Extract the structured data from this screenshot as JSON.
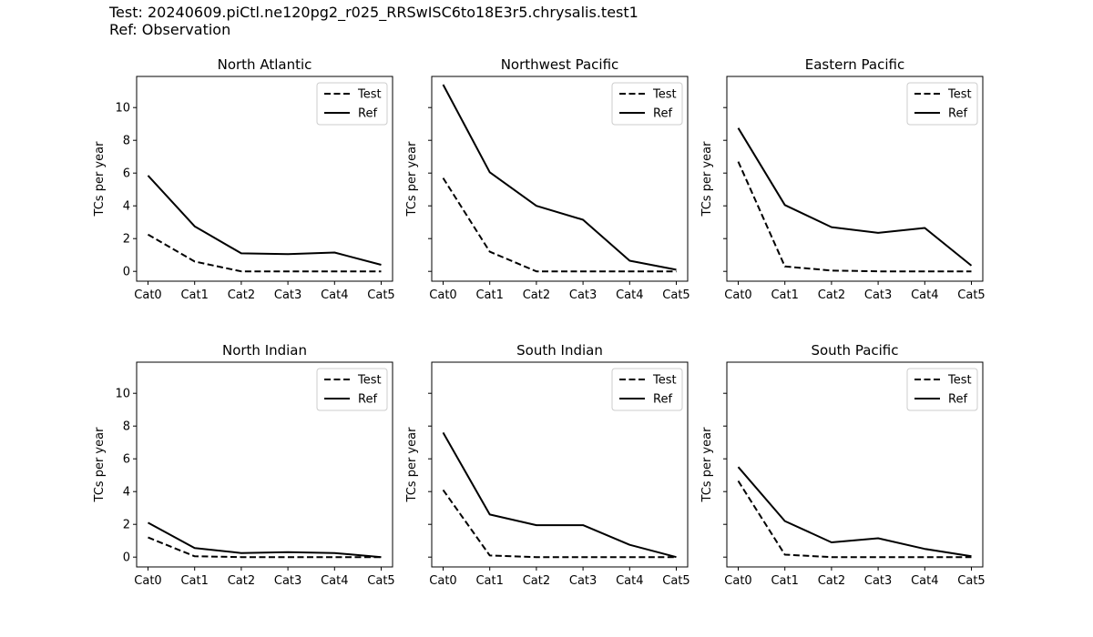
{
  "figure": {
    "title_line1": "Test: 20240609.piCtl.ne120pg2_r025_RRSwISC6to18E3r5.chrysalis.test1",
    "title_line2": "Ref: Observation"
  },
  "chart_data": [
    {
      "type": "line",
      "title": "North Atlantic",
      "ylabel": "TCs per year",
      "categories": [
        "Cat0",
        "Cat1",
        "Cat2",
        "Cat3",
        "Cat4",
        "Cat5"
      ],
      "ylim": [
        -0.6,
        11.9
      ],
      "yticks": [
        0,
        2,
        4,
        6,
        8,
        10
      ],
      "show_ytick_labels": true,
      "legend": "top-right",
      "series": [
        {
          "name": "Test",
          "style": "dashed",
          "color": "#000000",
          "values": [
            2.25,
            0.6,
            0.0,
            0.0,
            0.0,
            0.0
          ]
        },
        {
          "name": "Ref",
          "style": "solid",
          "color": "#000000",
          "values": [
            5.85,
            2.75,
            1.1,
            1.05,
            1.15,
            0.4
          ]
        }
      ]
    },
    {
      "type": "line",
      "title": "Northwest Pacific",
      "ylabel": "TCs per year",
      "categories": [
        "Cat0",
        "Cat1",
        "Cat2",
        "Cat3",
        "Cat4",
        "Cat5"
      ],
      "ylim": [
        -0.6,
        11.9
      ],
      "yticks": [
        0,
        2,
        4,
        6,
        8,
        10
      ],
      "show_ytick_labels": false,
      "legend": "top-right",
      "series": [
        {
          "name": "Test",
          "style": "dashed",
          "color": "#000000",
          "values": [
            5.7,
            1.2,
            0.0,
            0.0,
            0.0,
            0.0
          ]
        },
        {
          "name": "Ref",
          "style": "solid",
          "color": "#000000",
          "values": [
            11.4,
            6.05,
            4.0,
            3.15,
            0.65,
            0.1
          ]
        }
      ]
    },
    {
      "type": "line",
      "title": "Eastern Pacific",
      "ylabel": "TCs per year",
      "categories": [
        "Cat0",
        "Cat1",
        "Cat2",
        "Cat3",
        "Cat4",
        "Cat5"
      ],
      "ylim": [
        -0.6,
        11.9
      ],
      "yticks": [
        0,
        2,
        4,
        6,
        8,
        10
      ],
      "show_ytick_labels": false,
      "legend": "top-right",
      "series": [
        {
          "name": "Test",
          "style": "dashed",
          "color": "#000000",
          "values": [
            6.7,
            0.3,
            0.05,
            0.0,
            0.0,
            0.0
          ]
        },
        {
          "name": "Ref",
          "style": "solid",
          "color": "#000000",
          "values": [
            8.75,
            4.05,
            2.7,
            2.35,
            2.65,
            0.35
          ]
        }
      ]
    },
    {
      "type": "line",
      "title": "North Indian",
      "ylabel": "TCs per year",
      "categories": [
        "Cat0",
        "Cat1",
        "Cat2",
        "Cat3",
        "Cat4",
        "Cat5"
      ],
      "ylim": [
        -0.6,
        11.9
      ],
      "yticks": [
        0,
        2,
        4,
        6,
        8,
        10
      ],
      "show_ytick_labels": true,
      "legend": "top-right",
      "series": [
        {
          "name": "Test",
          "style": "dashed",
          "color": "#000000",
          "values": [
            1.2,
            0.05,
            0.0,
            0.0,
            0.0,
            0.0
          ]
        },
        {
          "name": "Ref",
          "style": "solid",
          "color": "#000000",
          "values": [
            2.1,
            0.55,
            0.25,
            0.3,
            0.25,
            0.0
          ]
        }
      ]
    },
    {
      "type": "line",
      "title": "South Indian",
      "ylabel": "TCs per year",
      "categories": [
        "Cat0",
        "Cat1",
        "Cat2",
        "Cat3",
        "Cat4",
        "Cat5"
      ],
      "ylim": [
        -0.6,
        11.9
      ],
      "yticks": [
        0,
        2,
        4,
        6,
        8,
        10
      ],
      "show_ytick_labels": false,
      "legend": "top-right",
      "series": [
        {
          "name": "Test",
          "style": "dashed",
          "color": "#000000",
          "values": [
            4.1,
            0.1,
            0.0,
            0.0,
            0.0,
            0.0
          ]
        },
        {
          "name": "Ref",
          "style": "solid",
          "color": "#000000",
          "values": [
            7.6,
            2.6,
            1.95,
            1.95,
            0.75,
            0.0
          ]
        }
      ]
    },
    {
      "type": "line",
      "title": "South Pacific",
      "ylabel": "TCs per year",
      "categories": [
        "Cat0",
        "Cat1",
        "Cat2",
        "Cat3",
        "Cat4",
        "Cat5"
      ],
      "ylim": [
        -0.6,
        11.9
      ],
      "yticks": [
        0,
        2,
        4,
        6,
        8,
        10
      ],
      "show_ytick_labels": false,
      "legend": "top-right",
      "series": [
        {
          "name": "Test",
          "style": "dashed",
          "color": "#000000",
          "values": [
            4.65,
            0.15,
            0.0,
            0.0,
            0.0,
            0.0
          ]
        },
        {
          "name": "Ref",
          "style": "solid",
          "color": "#000000",
          "values": [
            5.5,
            2.2,
            0.9,
            1.15,
            0.5,
            0.05
          ]
        }
      ]
    }
  ]
}
